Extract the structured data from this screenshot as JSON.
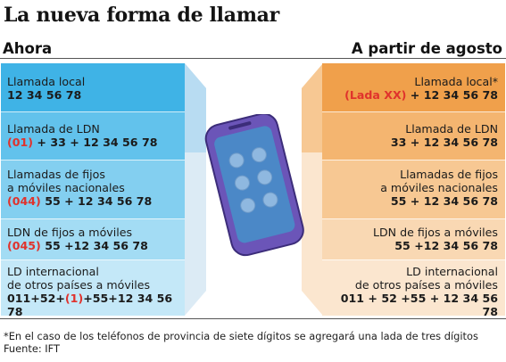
{
  "title": "La nueva forma de llamar",
  "left_header": "Ahora",
  "right_header": "A partir de agosto",
  "left_rows": [
    {
      "label_lines": [
        "Llamada local"
      ],
      "prefix": "",
      "number": "12 34 56 78"
    },
    {
      "label_lines": [
        "Llamada de LDN"
      ],
      "prefix": "(01)",
      "number": " + 33 + 12 34 56 78"
    },
    {
      "label_lines": [
        "Llamadas de fijos",
        "a móviles nacionales"
      ],
      "prefix": "(044)",
      "number": " 55 + 12 34 56 78"
    },
    {
      "label_lines": [
        "LDN de fijos a móviles"
      ],
      "prefix": "(045)",
      "number": " 55 +12 34 56 78"
    },
    {
      "label_lines": [
        "LD internacional",
        "de otros países a móviles"
      ],
      "number_pre": "011+52+",
      "prefix": "(1)",
      "number": "+55+12 34 56 78"
    }
  ],
  "right_rows": [
    {
      "label_lines": [
        "Llamada local*"
      ],
      "prefix": "(Lada XX)",
      "number": " + 12 34 56 78"
    },
    {
      "label_lines": [
        "Llamada de LDN"
      ],
      "prefix": "",
      "number": "33 + 12 34 56 78"
    },
    {
      "label_lines": [
        "Llamadas de fijos",
        "a móviles nacionales"
      ],
      "prefix": "",
      "number": "55 + 12 34 56 78"
    },
    {
      "label_lines": [
        "LDN de fijos a móviles"
      ],
      "prefix": "",
      "number": "55 +12 34 56 78"
    },
    {
      "label_lines": [
        "LD internacional",
        "de otros países a móviles"
      ],
      "prefix": "",
      "number": "011 + 52 +55 + 12 34 56 78"
    }
  ],
  "footnote": "*En el caso de los teléfonos de provincia de siete dígitos se agregará una lada de tres dígitos",
  "source": "Fuente: IFT",
  "colors": {
    "left_shades": [
      "#3fb3e6",
      "#62c2ec",
      "#83cff0",
      "#a3dcf4",
      "#c4e8f8"
    ],
    "right_shades": [
      "#f0a04b",
      "#f4b570",
      "#f7c893",
      "#f9d8b3",
      "#fbe6cf"
    ],
    "accent_red": "#e0322c",
    "phone_body": "#6b55b8",
    "phone_screen": "#4b88c7"
  }
}
